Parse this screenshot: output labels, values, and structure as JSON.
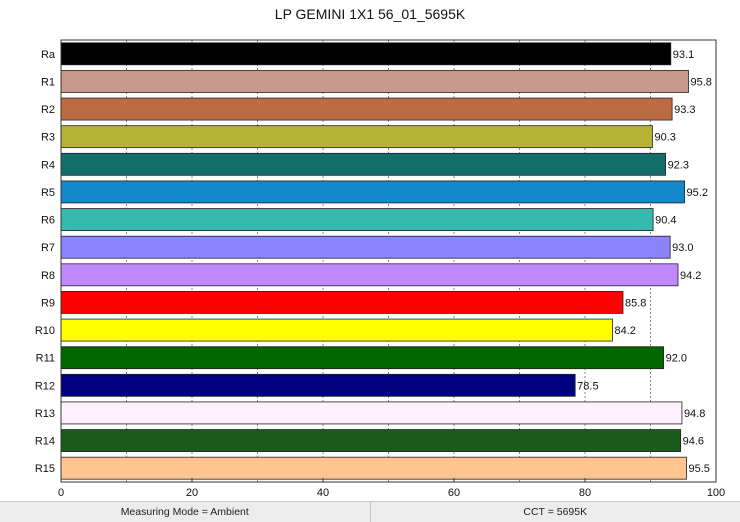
{
  "chart_data": {
    "type": "bar",
    "orientation": "horizontal",
    "title": "LP GEMINI 1X1 56_01_5695K",
    "xlabel": "",
    "ylabel": "",
    "xlim": [
      0,
      100
    ],
    "x_ticks": [
      "0",
      "20",
      "40",
      "60",
      "80",
      "100"
    ],
    "grid": "vertical dashed every 10",
    "categories": [
      "Ra",
      "R1",
      "R2",
      "R3",
      "R4",
      "R5",
      "R6",
      "R7",
      "R8",
      "R9",
      "R10",
      "R11",
      "R12",
      "R13",
      "R14",
      "R15"
    ],
    "values": [
      93.1,
      95.8,
      93.3,
      90.3,
      92.3,
      95.2,
      90.4,
      93.0,
      94.2,
      85.8,
      84.2,
      92.0,
      78.5,
      94.8,
      94.6,
      95.5
    ],
    "value_labels": [
      "93.1",
      "95.8",
      "93.3",
      "90.3",
      "92.3",
      "95.2",
      "90.4",
      "93.0",
      "94.2",
      "85.8",
      "84.2",
      "92.0",
      "78.5",
      "94.8",
      "94.6",
      "95.5"
    ],
    "colors": [
      "#000000",
      "#c8998a",
      "#bd6b45",
      "#b6b233",
      "#126e6a",
      "#1488c8",
      "#36b8ac",
      "#8a84ff",
      "#bf88ff",
      "#ff0000",
      "#ffff00",
      "#006600",
      "#000080",
      "#fff0ff",
      "#1a5a1a",
      "#ffc490"
    ]
  },
  "status_bar": {
    "measuring_mode": "Measuring Mode = Ambient",
    "cct": "CCT = 5695K"
  }
}
